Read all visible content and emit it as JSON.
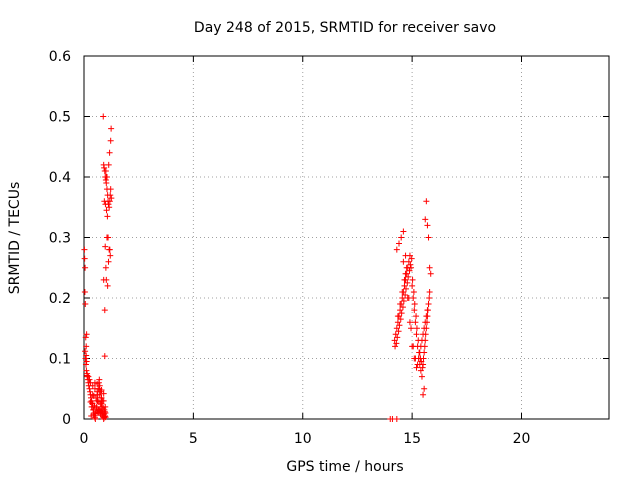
{
  "chart_data": {
    "type": "scatter",
    "title": "Day 248 of 2015, SRMTID for receiver savo",
    "xlabel": "GPS time / hours",
    "ylabel": "SRMTID / TECUs",
    "xlim": [
      0,
      24
    ],
    "ylim": [
      0,
      0.6
    ],
    "xticks": [
      0,
      5,
      10,
      15,
      20
    ],
    "yticks": [
      0,
      0.1,
      0.2,
      0.3,
      0.4,
      0.5,
      0.6
    ],
    "xtick_labels": [
      "0",
      "5",
      "10",
      "15",
      "20"
    ],
    "ytick_labels": [
      "0",
      "0.1",
      "0.2",
      "0.3",
      "0.4",
      "0.5",
      "0.6"
    ],
    "grid": true,
    "marker": "+",
    "color": "#ff0000",
    "series": [
      {
        "x": [
          0.02,
          0.03,
          0.05,
          0.04,
          0.06,
          0.08,
          0.1,
          0.12,
          0.07,
          0.09,
          0.11,
          0.14,
          0.15,
          0.18,
          0.2,
          0.22,
          0.25,
          0.28,
          0.3,
          0.32,
          0.35,
          0.38,
          0.4,
          0.42,
          0.45,
          0.48,
          0.5,
          0.52,
          0.55,
          0.58,
          0.6,
          0.62,
          0.65,
          0.68,
          0.7,
          0.72,
          0.75,
          0.78,
          0.8,
          0.82,
          0.85,
          0.88,
          0.9,
          0.92,
          0.95,
          0.97,
          0.3,
          0.4,
          0.5,
          0.6,
          0.7,
          0.8,
          0.85,
          0.9,
          0.35,
          0.45,
          0.55,
          0.65,
          0.75,
          0.25,
          0.2,
          0.15,
          0.5,
          0.6,
          0.7,
          0.8,
          0.9,
          0.4,
          0.45,
          0.55,
          0.62,
          0.68,
          0.75,
          0.83,
          0.88,
          0.93,
          0.95,
          0.98,
          0.3,
          0.38,
          0.48,
          0.58,
          0.66,
          0.72,
          0.78,
          0.86,
          0.92,
          0.96,
          0.99,
          0.33,
          0.43,
          0.53,
          0.63,
          0.73,
          0.83,
          0.91,
          0.05,
          0.1,
          0.12,
          0.95
        ],
        "y": [
          0.28,
          0.265,
          0.25,
          0.21,
          0.19,
          0.135,
          0.12,
          0.14,
          0.1,
          0.09,
          0.08,
          0.075,
          0.07,
          0.065,
          0.06,
          0.055,
          0.05,
          0.045,
          0.04,
          0.035,
          0.03,
          0.025,
          0.02,
          0.015,
          0.01,
          0.005,
          0.002,
          0.0,
          0.01,
          0.02,
          0.03,
          0.04,
          0.05,
          0.06,
          0.065,
          0.055,
          0.045,
          0.035,
          0.025,
          0.015,
          0.008,
          0.003,
          0.0,
          0.002,
          0.01,
          0.02,
          0.06,
          0.055,
          0.05,
          0.045,
          0.04,
          0.035,
          0.03,
          0.03,
          0.02,
          0.015,
          0.012,
          0.01,
          0.008,
          0.065,
          0.07,
          0.072,
          0.06,
          0.058,
          0.05,
          0.048,
          0.042,
          0.04,
          0.038,
          0.035,
          0.03,
          0.028,
          0.025,
          0.02,
          0.018,
          0.015,
          0.012,
          0.01,
          0.028,
          0.026,
          0.022,
          0.018,
          0.016,
          0.014,
          0.012,
          0.01,
          0.008,
          0.005,
          0.003,
          0.005,
          0.007,
          0.009,
          0.011,
          0.013,
          0.006,
          0.004,
          0.112,
          0.105,
          0.095,
          0.104
        ]
      },
      {
        "x": [
          0.88,
          0.9,
          0.92,
          0.95,
          0.97,
          1.0,
          1.02,
          1.05,
          1.08,
          1.1,
          1.12,
          1.15,
          1.18,
          1.2,
          1.22,
          1.25,
          1.05,
          1.1,
          1.15,
          1.2,
          1.0,
          1.02,
          1.08,
          1.12,
          1.18,
          0.93,
          0.98,
          1.03,
          1.07,
          1.13,
          1.17,
          1.22,
          1.24,
          1.0,
          1.05,
          0.95,
          0.9,
          0.97,
          1.02
        ],
        "y": [
          0.5,
          0.42,
          0.415,
          0.41,
          0.4,
          0.395,
          0.39,
          0.38,
          0.37,
          0.36,
          0.355,
          0.35,
          0.36,
          0.37,
          0.38,
          0.365,
          0.3,
          0.3,
          0.28,
          0.27,
          0.25,
          0.23,
          0.22,
          0.26,
          0.28,
          0.36,
          0.355,
          0.345,
          0.335,
          0.42,
          0.44,
          0.46,
          0.48,
          0.41,
          0.4,
          0.18,
          0.23,
          0.285,
          0.4
        ]
      },
      {
        "x": [
          14.0,
          14.1,
          14.3
        ],
        "y": [
          0.0,
          0.0,
          0.0
        ]
      },
      {
        "x": [
          14.2,
          14.25,
          14.3,
          14.35,
          14.4,
          14.45,
          14.5,
          14.55,
          14.6,
          14.65,
          14.7,
          14.75,
          14.8,
          14.85,
          14.9,
          14.95,
          15.0,
          15.05,
          15.1,
          15.15,
          15.2,
          15.25,
          15.3,
          15.35,
          15.4,
          15.45,
          15.5,
          15.55,
          15.6,
          15.65,
          15.7,
          15.75,
          15.8,
          15.85,
          14.22,
          14.28,
          14.32,
          14.38,
          14.42,
          14.48,
          14.52,
          14.58,
          14.62,
          14.68,
          14.72,
          14.78,
          14.82,
          14.88,
          14.92,
          14.98,
          15.02,
          15.08,
          15.12,
          15.18,
          15.22,
          15.28,
          15.32,
          15.38,
          15.42,
          15.48,
          15.52,
          15.58,
          15.62,
          15.68,
          15.72,
          15.78,
          14.3,
          14.4,
          14.5,
          14.6,
          14.7,
          14.8,
          14.9,
          15.0,
          15.1,
          15.2,
          15.3,
          15.4,
          15.5,
          15.6,
          15.7,
          14.35,
          14.45,
          14.55,
          14.65,
          14.75,
          14.85,
          14.95,
          15.05,
          15.15,
          15.25,
          15.35,
          15.45,
          15.55,
          15.65,
          15.75,
          14.6,
          14.7,
          15.6,
          15.65,
          15.7,
          15.75,
          15.8,
          15.5,
          15.55
        ],
        "y": [
          0.13,
          0.14,
          0.15,
          0.16,
          0.17,
          0.18,
          0.19,
          0.2,
          0.21,
          0.22,
          0.23,
          0.24,
          0.25,
          0.26,
          0.27,
          0.25,
          0.22,
          0.2,
          0.18,
          0.16,
          0.14,
          0.12,
          0.1,
          0.09,
          0.08,
          0.07,
          0.09,
          0.11,
          0.13,
          0.15,
          0.17,
          0.19,
          0.21,
          0.24,
          0.12,
          0.125,
          0.135,
          0.145,
          0.155,
          0.165,
          0.175,
          0.185,
          0.195,
          0.205,
          0.215,
          0.225,
          0.235,
          0.245,
          0.255,
          0.265,
          0.23,
          0.21,
          0.19,
          0.17,
          0.15,
          0.13,
          0.11,
          0.1,
          0.095,
          0.085,
          0.1,
          0.12,
          0.14,
          0.16,
          0.18,
          0.2,
          0.28,
          0.29,
          0.3,
          0.31,
          0.24,
          0.2,
          0.16,
          0.12,
          0.1,
          0.085,
          0.1,
          0.12,
          0.14,
          0.16,
          0.18,
          0.17,
          0.19,
          0.21,
          0.23,
          0.25,
          0.2,
          0.15,
          0.12,
          0.1,
          0.09,
          0.11,
          0.13,
          0.15,
          0.17,
          0.19,
          0.26,
          0.27,
          0.33,
          0.36,
          0.32,
          0.3,
          0.25,
          0.04,
          0.05
        ]
      }
    ]
  }
}
